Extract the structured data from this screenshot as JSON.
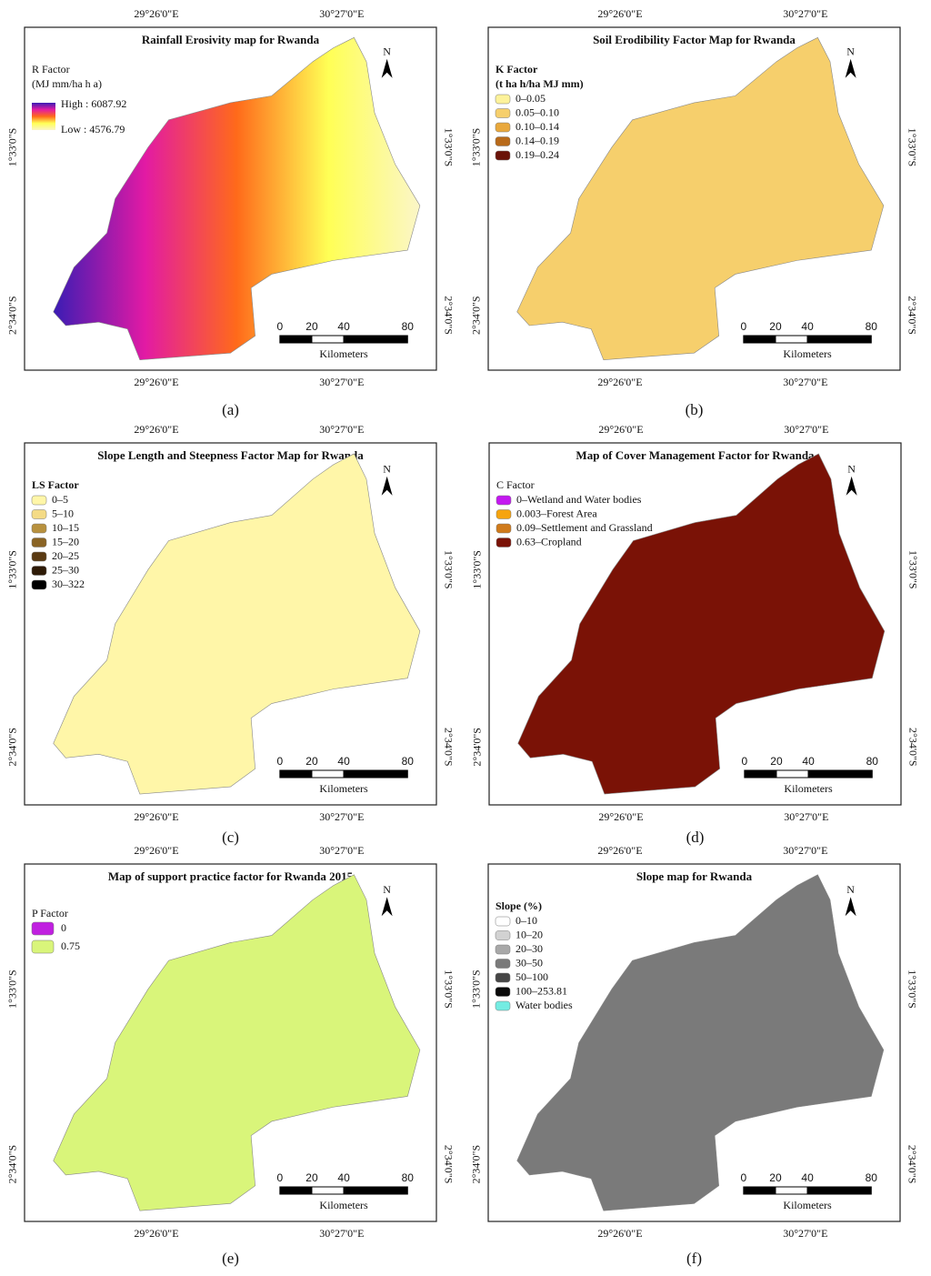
{
  "grid_labels": {
    "lon": [
      "29°26'0\"E",
      "30°27'0\"E"
    ],
    "lat": [
      "1°33'0\"S",
      "2°34'0\"S"
    ]
  },
  "scale": {
    "ticks": [
      "0",
      "20",
      "40",
      "80"
    ],
    "unit": "Kilometers"
  },
  "north": "N",
  "panels": [
    {
      "caption": "(a)",
      "title": "Rainfall Erosivity map for Rwanda",
      "legend": {
        "title": [
          "R Factor",
          "(MJ mm/ha h a)"
        ],
        "high": "High : 6087.92",
        "low": "Low : 4576.79",
        "gradient": [
          "#3a1cb4",
          "#e21aa4",
          "#ff6a1a",
          "#ffff55",
          "#fbf6c8"
        ]
      }
    },
    {
      "caption": "(b)",
      "title": "Soil Erodibility Factor Map for Rwanda",
      "legend": {
        "title": [
          "K Factor",
          "(t ha h/ha MJ mm)"
        ],
        "items": [
          {
            "label": "0–0.05",
            "color": "#fdf29a"
          },
          {
            "label": "0.05–0.10",
            "color": "#f6cf6c"
          },
          {
            "label": "0.10–0.14",
            "color": "#e9a83c"
          },
          {
            "label": "0.14–0.19",
            "color": "#b86a1a"
          },
          {
            "label": "0.19–0.24",
            "color": "#6a1208"
          }
        ]
      }
    },
    {
      "caption": "(c)",
      "title": "Slope Length and Steepness Factor Map for Rwanda",
      "legend": {
        "title": [
          "LS Factor"
        ],
        "items": [
          {
            "label": "0–5",
            "color": "#fff6a8"
          },
          {
            "label": "5–10",
            "color": "#f4db86"
          },
          {
            "label": "10–15",
            "color": "#b8913e"
          },
          {
            "label": "15–20",
            "color": "#8a6424"
          },
          {
            "label": "20–25",
            "color": "#5a3a12"
          },
          {
            "label": "25–30",
            "color": "#2e1a06"
          },
          {
            "label": "30–322",
            "color": "#000000"
          }
        ]
      }
    },
    {
      "caption": "(d)",
      "title": "Map of Cover Management Factor for Rwanda",
      "legend": {
        "title": [
          "C Factor"
        ],
        "items": [
          {
            "label": "0–Wetland and Water bodies",
            "color": "#c418f0"
          },
          {
            "label": "0.003–Forest Area",
            "color": "#f6a40e"
          },
          {
            "label": "0.09–Settlement and Grassland",
            "color": "#d07a1a"
          },
          {
            "label": "0.63–Cropland",
            "color": "#7a1206"
          }
        ]
      }
    },
    {
      "caption": "(e)",
      "title": "Map of support practice factor for Rwanda 2015",
      "legend": {
        "title": [
          "P Factor"
        ],
        "items": [
          {
            "label": "0",
            "color": "#c020e0"
          },
          {
            "label": "0.75",
            "color": "#d9f57a"
          }
        ]
      }
    },
    {
      "caption": "(f)",
      "title": "Slope map for Rwanda",
      "legend": {
        "title": [
          "Slope (%)"
        ],
        "items": [
          {
            "label": "0–10",
            "color": "#ffffff"
          },
          {
            "label": "10–20",
            "color": "#d2d2d2"
          },
          {
            "label": "20–30",
            "color": "#a8a8a8"
          },
          {
            "label": "30–50",
            "color": "#7a7a7a"
          },
          {
            "label": "50–100",
            "color": "#464646"
          },
          {
            "label": "100–253.81",
            "color": "#0a0a0a"
          },
          {
            "label": "Water bodies",
            "color": "#74ece2"
          }
        ]
      }
    }
  ]
}
